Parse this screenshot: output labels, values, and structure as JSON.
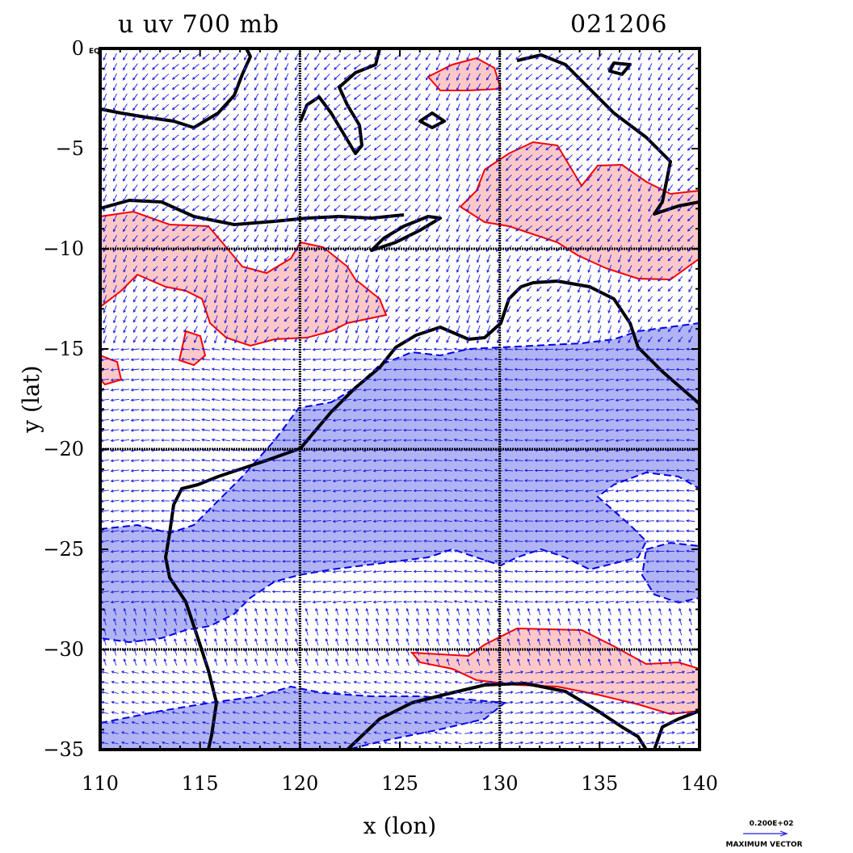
{
  "header": {
    "title": "u uv 700 mb",
    "date_code": "021206"
  },
  "axes": {
    "x_label": "x (lon)",
    "y_label": "y (lat)",
    "x_ticks": [
      "110",
      "115",
      "120",
      "125",
      "130",
      "135",
      "140"
    ],
    "y_ticks": [
      "0",
      "−5",
      "−10",
      "−15",
      "−20",
      "−25",
      "−30",
      "−35"
    ],
    "y_zero_suffix": "EQ",
    "x_range": [
      110,
      140
    ],
    "y_range": [
      -35,
      0
    ],
    "grid_lon": [
      120,
      130
    ],
    "grid_lat": [
      -10,
      -20,
      -30
    ]
  },
  "vector_key": {
    "magnitude": "0.200E+02",
    "label": "MAXIMUM VECTOR"
  },
  "colors": {
    "positive_fill": "#ffc8c8",
    "positive_line": "#ff0000",
    "negative_fill": "#b0b4f4",
    "negative_line": "#0000e6",
    "vector": "#1e1ee0",
    "coast": "#000000"
  }
}
